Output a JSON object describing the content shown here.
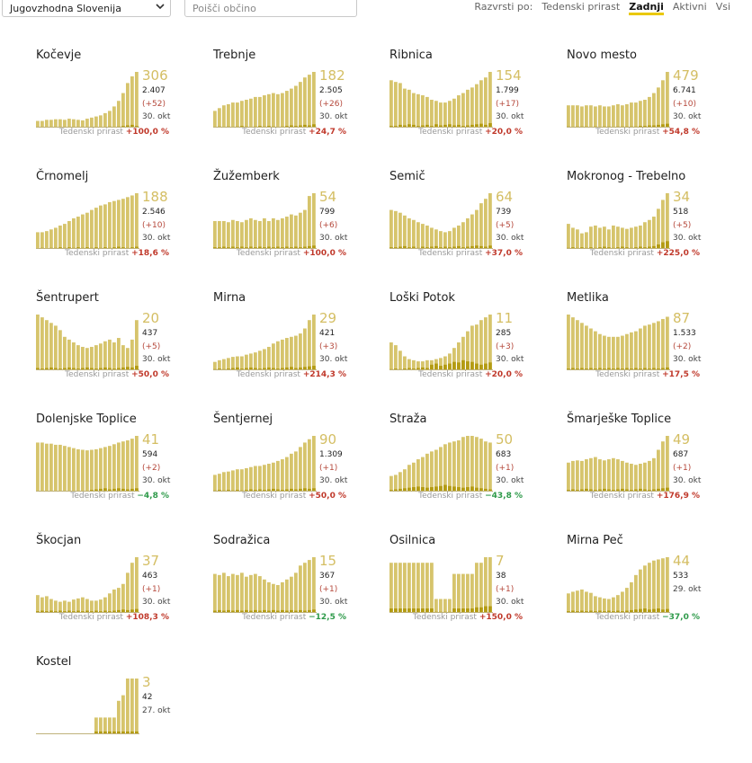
{
  "toolbar": {
    "region_label": "Jugovzhodna Slovenija",
    "search_placeholder": "Poišči občino",
    "sort_label": "Razvrsti po:",
    "sort_options": [
      "Tedenski prirast",
      "Zadnji",
      "Aktivni",
      "Vsi"
    ],
    "sort_selected": "Zadnji"
  },
  "colors": {
    "bar": "#d6c46c",
    "bar_light": "#e6d896",
    "bar_dark": "#b39b12",
    "positive": "#c0392b",
    "negative": "#2e9a4a"
  },
  "growth_label": "Tedenski prirast",
  "chart_data": [
    {
      "type": "bar",
      "title": "Kočevje",
      "active": "306",
      "total": "2.407",
      "delta": "(+52)",
      "date": "30. okt",
      "growth": "+100,0 %",
      "values": [
        12,
        12,
        14,
        14,
        15,
        15,
        14,
        16,
        15,
        14,
        13,
        16,
        18,
        20,
        22,
        26,
        30,
        38,
        48,
        62,
        80,
        92,
        100
      ],
      "new": [
        0,
        0,
        1,
        0,
        0,
        1,
        0,
        0,
        1,
        0,
        0,
        0,
        1,
        0,
        1,
        0,
        2,
        1,
        2,
        3,
        4,
        5,
        3
      ]
    },
    {
      "type": "bar",
      "title": "Trebnje",
      "active": "182",
      "total": "2.505",
      "delta": "(+26)",
      "date": "30. okt",
      "growth": "+24,7 %",
      "values": [
        30,
        35,
        40,
        42,
        45,
        45,
        48,
        50,
        52,
        55,
        55,
        58,
        60,
        62,
        60,
        62,
        66,
        70,
        75,
        82,
        90,
        95,
        100
      ],
      "new": [
        1,
        2,
        1,
        2,
        1,
        2,
        3,
        2,
        1,
        2,
        3,
        2,
        3,
        2,
        1,
        2,
        3,
        4,
        3,
        4,
        5,
        4,
        6
      ]
    },
    {
      "type": "bar",
      "title": "Ribnica",
      "active": "154",
      "total": "1.799",
      "delta": "(+17)",
      "date": "30. okt",
      "growth": "+20,0 %",
      "values": [
        85,
        82,
        80,
        70,
        68,
        62,
        60,
        58,
        55,
        50,
        48,
        45,
        45,
        48,
        52,
        58,
        62,
        68,
        72,
        78,
        85,
        90,
        100
      ],
      "new": [
        3,
        3,
        5,
        4,
        6,
        5,
        3,
        4,
        5,
        3,
        6,
        4,
        5,
        6,
        4,
        5,
        3,
        4,
        5,
        6,
        7,
        5,
        8
      ]
    },
    {
      "type": "bar",
      "title": "Novo mesto",
      "active": "479",
      "total": "6.741",
      "delta": "(+10)",
      "date": "30. okt",
      "growth": "+54,8 %",
      "values": [
        40,
        40,
        40,
        38,
        40,
        40,
        38,
        40,
        38,
        38,
        40,
        42,
        40,
        42,
        45,
        45,
        48,
        50,
        55,
        62,
        72,
        85,
        100
      ],
      "new": [
        2,
        1,
        2,
        2,
        2,
        1,
        2,
        1,
        2,
        2,
        1,
        2,
        2,
        2,
        2,
        2,
        3,
        3,
        4,
        4,
        5,
        6,
        7
      ]
    },
    {
      "type": "bar",
      "title": "Črnomelj",
      "active": "188",
      "total": "2.546",
      "delta": "(+10)",
      "date": "30. okt",
      "growth": "+18,6 %",
      "values": [
        30,
        30,
        32,
        35,
        38,
        42,
        45,
        50,
        55,
        58,
        62,
        65,
        70,
        74,
        78,
        80,
        84,
        86,
        88,
        90,
        93,
        96,
        100
      ],
      "new": [
        1,
        2,
        1,
        2,
        2,
        3,
        2,
        3,
        2,
        3,
        2,
        3,
        2,
        3,
        2,
        3,
        2,
        3,
        4,
        3,
        2,
        3,
        4
      ]
    },
    {
      "type": "bar",
      "title": "Žužemberk",
      "active": "54",
      "total": "799",
      "delta": "(+6)",
      "date": "30. okt",
      "growth": "+100,0 %",
      "values": [
        50,
        50,
        50,
        48,
        52,
        50,
        48,
        52,
        55,
        52,
        50,
        55,
        50,
        55,
        52,
        55,
        58,
        62,
        60,
        65,
        70,
        95,
        100
      ],
      "new": [
        3,
        3,
        4,
        3,
        4,
        3,
        4,
        3,
        4,
        3,
        4,
        3,
        4,
        3,
        4,
        3,
        4,
        3,
        4,
        3,
        4,
        5,
        6
      ]
    },
    {
      "type": "bar",
      "title": "Semič",
      "active": "64",
      "total": "739",
      "delta": "(+5)",
      "date": "30. okt",
      "growth": "+37,0 %",
      "values": [
        70,
        68,
        65,
        60,
        55,
        52,
        48,
        45,
        42,
        38,
        35,
        32,
        30,
        32,
        38,
        42,
        48,
        55,
        62,
        70,
        82,
        90,
        100
      ],
      "new": [
        3,
        3,
        4,
        5,
        3,
        4,
        2,
        4,
        3,
        4,
        5,
        3,
        4,
        3,
        4,
        5,
        3,
        4,
        5,
        6,
        5,
        4,
        6
      ]
    },
    {
      "type": "bar",
      "title": "Mokronog - Trebelno",
      "active": "34",
      "total": "518",
      "delta": "(+5)",
      "date": "30. okt",
      "growth": "+225,0 %",
      "values": [
        45,
        38,
        35,
        28,
        30,
        40,
        42,
        38,
        40,
        35,
        42,
        40,
        38,
        36,
        38,
        40,
        42,
        48,
        52,
        58,
        72,
        88,
        100
      ],
      "new": [
        2,
        3,
        2,
        3,
        2,
        3,
        2,
        3,
        4,
        3,
        2,
        3,
        4,
        3,
        2,
        3,
        4,
        3,
        4,
        5,
        8,
        12,
        14
      ]
    },
    {
      "type": "bar",
      "title": "Šentrupert",
      "active": "20",
      "total": "437",
      "delta": "(+5)",
      "date": "30. okt",
      "growth": "+50,0 %",
      "values": [
        100,
        95,
        90,
        85,
        80,
        72,
        60,
        55,
        50,
        45,
        42,
        40,
        42,
        45,
        48,
        52,
        55,
        50,
        58,
        45,
        40,
        55,
        90
      ],
      "new": [
        4,
        3,
        4,
        5,
        4,
        3,
        4,
        5,
        4,
        3,
        4,
        5,
        4,
        3,
        4,
        5,
        4,
        3,
        4,
        5,
        6,
        5,
        8
      ]
    },
    {
      "type": "bar",
      "title": "Mirna",
      "active": "29",
      "total": "421",
      "delta": "(+3)",
      "date": "30. okt",
      "growth": "+214,3 %",
      "values": [
        15,
        18,
        20,
        22,
        24,
        25,
        25,
        28,
        30,
        32,
        35,
        38,
        42,
        48,
        52,
        55,
        58,
        60,
        62,
        66,
        75,
        90,
        100
      ],
      "new": [
        2,
        3,
        2,
        3,
        4,
        5,
        3,
        4,
        5,
        4,
        3,
        4,
        5,
        4,
        3,
        4,
        5,
        6,
        4,
        5,
        6,
        7,
        8
      ]
    },
    {
      "type": "bar",
      "title": "Loški Potok",
      "active": "11",
      "total": "285",
      "delta": "(+3)",
      "date": "30. okt",
      "growth": "+20,0 %",
      "values": [
        50,
        45,
        35,
        25,
        20,
        18,
        16,
        16,
        18,
        18,
        20,
        22,
        25,
        30,
        40,
        50,
        60,
        70,
        80,
        82,
        90,
        95,
        100
      ],
      "new": [
        2,
        3,
        2,
        3,
        4,
        3,
        4,
        5,
        4,
        10,
        12,
        8,
        10,
        12,
        15,
        14,
        18,
        16,
        15,
        12,
        10,
        12,
        14
      ]
    },
    {
      "type": "bar",
      "title": "Metlika",
      "active": "87",
      "total": "1.533",
      "delta": "(+2)",
      "date": "30. okt",
      "growth": "+17,5 %",
      "values": [
        100,
        95,
        90,
        85,
        80,
        75,
        70,
        65,
        62,
        60,
        60,
        60,
        62,
        65,
        68,
        70,
        75,
        80,
        82,
        85,
        88,
        92,
        96
      ],
      "new": [
        3,
        4,
        3,
        4,
        3,
        4,
        3,
        4,
        3,
        4,
        3,
        4,
        3,
        4,
        3,
        4,
        3,
        4,
        3,
        4,
        3,
        4,
        5
      ]
    },
    {
      "type": "bar",
      "title": "Dolenjske Toplice",
      "active": "41",
      "total": "594",
      "delta": "(+2)",
      "date": "30. okt",
      "growth": "−4,8 %",
      "values": [
        88,
        88,
        86,
        86,
        84,
        84,
        82,
        80,
        78,
        76,
        75,
        74,
        75,
        76,
        78,
        80,
        82,
        85,
        88,
        90,
        92,
        95,
        100
      ],
      "new": [
        0,
        0,
        0,
        0,
        0,
        0,
        0,
        0,
        0,
        0,
        0,
        0,
        3,
        4,
        5,
        6,
        4,
        5,
        6,
        5,
        4,
        5,
        6
      ]
    },
    {
      "type": "bar",
      "title": "Šentjernej",
      "active": "90",
      "total": "1.309",
      "delta": "(+1)",
      "date": "30. okt",
      "growth": "+50,0 %",
      "values": [
        30,
        32,
        35,
        36,
        38,
        40,
        40,
        42,
        44,
        46,
        46,
        48,
        50,
        52,
        55,
        58,
        62,
        68,
        72,
        80,
        88,
        94,
        100
      ],
      "new": [
        2,
        3,
        2,
        3,
        2,
        3,
        2,
        3,
        4,
        3,
        4,
        3,
        4,
        5,
        4,
        3,
        4,
        5,
        4,
        5,
        6,
        5,
        6
      ]
    },
    {
      "type": "bar",
      "title": "Straža",
      "active": "50",
      "total": "683",
      "delta": "(+1)",
      "date": "30. okt",
      "growth": "−43,8 %",
      "values": [
        28,
        30,
        35,
        40,
        48,
        52,
        58,
        62,
        68,
        72,
        75,
        80,
        85,
        88,
        90,
        92,
        98,
        100,
        100,
        98,
        95,
        90,
        88
      ],
      "new": [
        3,
        4,
        5,
        6,
        7,
        8,
        9,
        8,
        7,
        8,
        9,
        10,
        12,
        10,
        9,
        8,
        7,
        8,
        9,
        7,
        6,
        5,
        4
      ]
    },
    {
      "type": "bar",
      "title": "Šmarješke Toplice",
      "active": "49",
      "total": "687",
      "delta": "(+1)",
      "date": "30. okt",
      "growth": "+176,9 %",
      "values": [
        52,
        55,
        56,
        55,
        58,
        60,
        62,
        58,
        56,
        58,
        60,
        58,
        55,
        52,
        50,
        48,
        50,
        52,
        55,
        60,
        75,
        90,
        100
      ],
      "new": [
        3,
        4,
        3,
        4,
        5,
        4,
        3,
        4,
        5,
        4,
        3,
        4,
        5,
        4,
        3,
        4,
        5,
        4,
        3,
        4,
        5,
        6,
        7
      ]
    },
    {
      "type": "bar",
      "title": "Škocjan",
      "active": "37",
      "total": "463",
      "delta": "(+1)",
      "date": "30. okt",
      "growth": "+108,3 %",
      "values": [
        32,
        28,
        30,
        25,
        22,
        20,
        22,
        20,
        24,
        26,
        28,
        25,
        22,
        22,
        24,
        28,
        35,
        42,
        45,
        52,
        72,
        90,
        100
      ],
      "new": [
        3,
        4,
        3,
        4,
        3,
        4,
        3,
        4,
        3,
        4,
        3,
        4,
        3,
        4,
        3,
        4,
        3,
        4,
        5,
        6,
        5,
        6,
        7
      ]
    },
    {
      "type": "bar",
      "title": "Sodražica",
      "active": "15",
      "total": "367",
      "delta": "(+1)",
      "date": "30. okt",
      "growth": "−12,5 %",
      "values": [
        70,
        68,
        72,
        66,
        70,
        68,
        72,
        65,
        68,
        70,
        66,
        60,
        55,
        52,
        50,
        55,
        60,
        65,
        72,
        85,
        90,
        95,
        100
      ],
      "new": [
        4,
        5,
        4,
        5,
        4,
        5,
        4,
        5,
        4,
        5,
        4,
        5,
        4,
        5,
        4,
        5,
        4,
        5,
        4,
        5,
        4,
        5,
        6
      ]
    },
    {
      "type": "bar",
      "title": "Osilnica",
      "active": "7",
      "total": "38",
      "delta": "(+1)",
      "date": "30. okt",
      "growth": "+150,0 %",
      "values": [
        90,
        90,
        90,
        90,
        90,
        90,
        90,
        90,
        90,
        90,
        25,
        25,
        25,
        25,
        70,
        70,
        70,
        70,
        70,
        90,
        90,
        100,
        100
      ],
      "new": [
        8,
        8,
        8,
        8,
        8,
        8,
        8,
        8,
        8,
        8,
        2,
        2,
        2,
        2,
        8,
        8,
        8,
        8,
        8,
        10,
        10,
        12,
        12
      ]
    },
    {
      "type": "bar",
      "title": "Mirna Peč",
      "active": "44",
      "total": "533",
      "delta": "",
      "date": "29. okt",
      "growth": "−37,0 %",
      "values": [
        35,
        38,
        40,
        42,
        38,
        36,
        30,
        28,
        26,
        25,
        28,
        32,
        38,
        45,
        55,
        68,
        78,
        85,
        90,
        94,
        96,
        98,
        100
      ],
      "new": [
        3,
        4,
        3,
        4,
        3,
        4,
        3,
        4,
        3,
        4,
        3,
        4,
        3,
        4,
        5,
        6,
        7,
        8,
        6,
        7,
        8,
        6,
        7
      ]
    },
    {
      "type": "bar",
      "title": "Kostel",
      "active": "3",
      "total": "42",
      "delta": "",
      "date": "27. okt",
      "growth": "",
      "values": [
        0,
        0,
        0,
        0,
        0,
        0,
        0,
        0,
        0,
        0,
        0,
        0,
        0,
        30,
        30,
        30,
        30,
        30,
        60,
        70,
        100,
        100,
        100
      ],
      "new": [
        0,
        0,
        0,
        0,
        0,
        0,
        0,
        0,
        0,
        0,
        0,
        0,
        0,
        5,
        5,
        5,
        5,
        5,
        5,
        5,
        5,
        5,
        5
      ]
    }
  ]
}
